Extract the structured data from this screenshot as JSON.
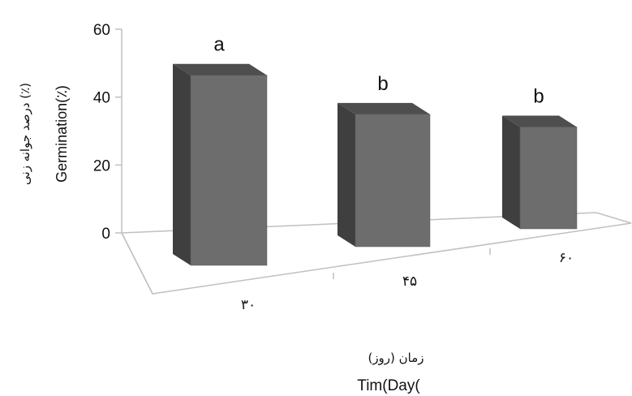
{
  "chart_data": {
    "type": "bar",
    "style": "3d-column",
    "categories": [
      "۳۰",
      "۴۵",
      "۶۰"
    ],
    "values": [
      56,
      39,
      30
    ],
    "group_letters": [
      "a",
      "b",
      "b"
    ],
    "ylim": [
      0,
      60
    ],
    "yticks": [
      "0",
      "20",
      "40",
      "60"
    ],
    "ylabel_fa": "درصد جوانه زنی (٪)",
    "ylabel_en": "Germination(٪)",
    "xlabel_fa": "(زمان (روز",
    "xlabel_en": "Tim(Day(",
    "grid": false,
    "legend": "none",
    "colors": {
      "front": "#6d6d6d",
      "side": "#3f3f3f",
      "top": "#4e4e4e",
      "axis": "#c0c0c0"
    }
  }
}
